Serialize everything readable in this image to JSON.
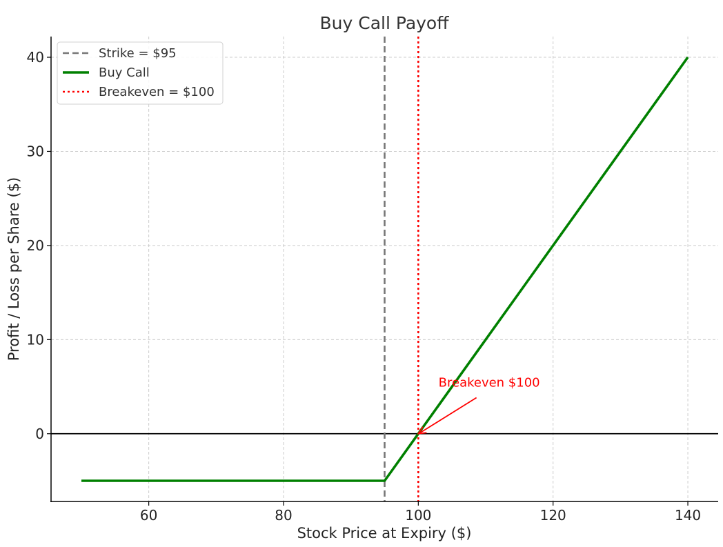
{
  "chart_data": {
    "type": "line",
    "title": "Buy Call Payoff",
    "xlabel": "Stock Price at Expiry ($)",
    "ylabel": "Profit / Loss per Share ($)",
    "xlim": [
      45.5,
      144.5
    ],
    "ylim": [
      -7.2,
      42.2
    ],
    "x_ticks": [
      60,
      80,
      100,
      120,
      140
    ],
    "y_ticks": [
      0,
      10,
      20,
      30,
      40
    ],
    "grid": true,
    "legend_position": "top-left",
    "series": [
      {
        "name": "Buy Call",
        "color": "#008000",
        "style": "solid",
        "points": [
          [
            50,
            -5
          ],
          [
            95,
            -5
          ],
          [
            140,
            40
          ]
        ]
      }
    ],
    "vlines": [
      {
        "name": "Strike = $95",
        "x": 95,
        "color": "#777777",
        "style": "dashed"
      },
      {
        "name": "Breakeven = $100",
        "x": 100,
        "color": "#ff0000",
        "style": "dotted"
      }
    ],
    "hlines": [
      {
        "y": 0,
        "color": "#000000"
      }
    ],
    "legend": [
      {
        "label": "Strike = $95",
        "color": "#777777",
        "style": "dashed"
      },
      {
        "label": "Buy Call",
        "color": "#008000",
        "style": "solid"
      },
      {
        "label": "Breakeven = $100",
        "color": "#ff0000",
        "style": "dotted"
      }
    ],
    "annotations": [
      {
        "text": "Breakeven $100",
        "point": [
          100,
          0
        ],
        "text_at": [
          103,
          5
        ],
        "color": "#ff0000"
      }
    ]
  }
}
